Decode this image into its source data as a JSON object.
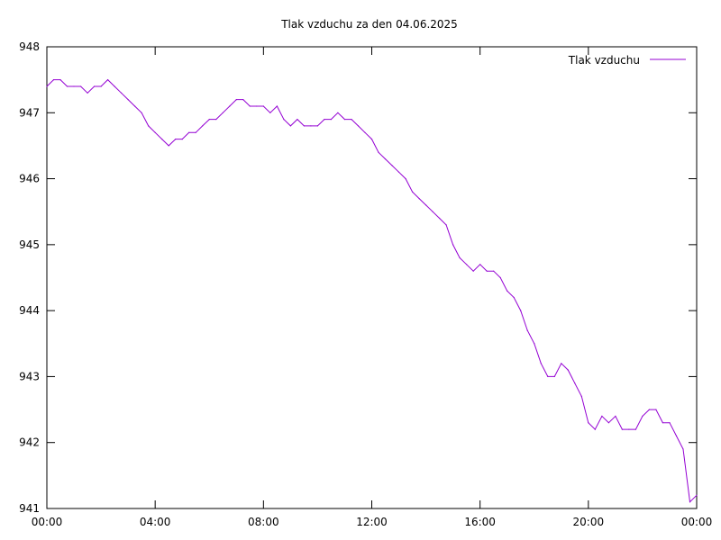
{
  "chart_data": {
    "type": "line",
    "title": "Tlak vzduchu za den 04.06.2025",
    "xlabel": "",
    "ylabel": "",
    "xlim": [
      0,
      24
    ],
    "ylim": [
      941,
      948
    ],
    "x_ticks": [
      "00:00",
      "04:00",
      "08:00",
      "12:00",
      "16:00",
      "20:00",
      "00:00"
    ],
    "y_ticks": [
      "941",
      "942",
      "943",
      "944",
      "945",
      "946",
      "947",
      "948"
    ],
    "grid": false,
    "legend_position": "top-right",
    "colors": {
      "series": "#9400d3",
      "axes": "#000000"
    },
    "series": [
      {
        "name": "Tlak vzduchu",
        "x": [
          0.0,
          0.25,
          0.5,
          0.75,
          1.0,
          1.25,
          1.5,
          1.75,
          2.0,
          2.25,
          2.5,
          2.75,
          3.0,
          3.25,
          3.5,
          3.75,
          4.0,
          4.25,
          4.5,
          4.75,
          5.0,
          5.25,
          5.5,
          5.75,
          6.0,
          6.25,
          6.5,
          6.75,
          7.0,
          7.25,
          7.5,
          7.75,
          8.0,
          8.25,
          8.5,
          8.75,
          9.0,
          9.25,
          9.5,
          9.75,
          10.0,
          10.25,
          10.5,
          10.75,
          11.0,
          11.25,
          11.5,
          11.75,
          12.0,
          12.25,
          12.5,
          12.75,
          13.0,
          13.25,
          13.5,
          13.75,
          14.0,
          14.25,
          14.5,
          14.75,
          15.0,
          15.25,
          15.5,
          15.75,
          16.0,
          16.25,
          16.5,
          16.75,
          17.0,
          17.25,
          17.5,
          17.75,
          18.0,
          18.25,
          18.5,
          18.75,
          19.0,
          19.25,
          19.5,
          19.75,
          20.0,
          20.25,
          20.5,
          20.75,
          21.0,
          21.25,
          21.5,
          21.75,
          22.0,
          22.25,
          22.5,
          22.75,
          23.0,
          23.25,
          23.5,
          23.75,
          24.0
        ],
        "values": [
          947.4,
          947.5,
          947.5,
          947.4,
          947.4,
          947.4,
          947.3,
          947.4,
          947.4,
          947.5,
          947.4,
          947.3,
          947.2,
          947.1,
          947.0,
          946.8,
          946.7,
          946.6,
          946.5,
          946.6,
          946.6,
          946.7,
          946.7,
          946.8,
          946.9,
          946.9,
          947.0,
          947.1,
          947.2,
          947.2,
          947.1,
          947.1,
          947.1,
          947.0,
          947.1,
          946.9,
          946.8,
          946.9,
          946.8,
          946.8,
          946.8,
          946.9,
          946.9,
          947.0,
          946.9,
          946.9,
          946.8,
          946.7,
          946.6,
          946.4,
          946.3,
          946.2,
          946.1,
          946.0,
          945.8,
          945.7,
          945.6,
          945.5,
          945.4,
          945.3,
          945.0,
          944.8,
          944.7,
          944.6,
          944.7,
          944.6,
          944.6,
          944.5,
          944.3,
          944.2,
          944.0,
          943.7,
          943.5,
          943.2,
          943.0,
          943.0,
          943.2,
          943.1,
          942.9,
          942.7,
          942.3,
          942.2,
          942.4,
          942.3,
          942.4,
          942.2,
          942.2,
          942.2,
          942.4,
          942.5,
          942.5,
          942.3,
          942.3,
          942.1,
          941.9,
          941.1,
          941.2
        ]
      }
    ]
  }
}
